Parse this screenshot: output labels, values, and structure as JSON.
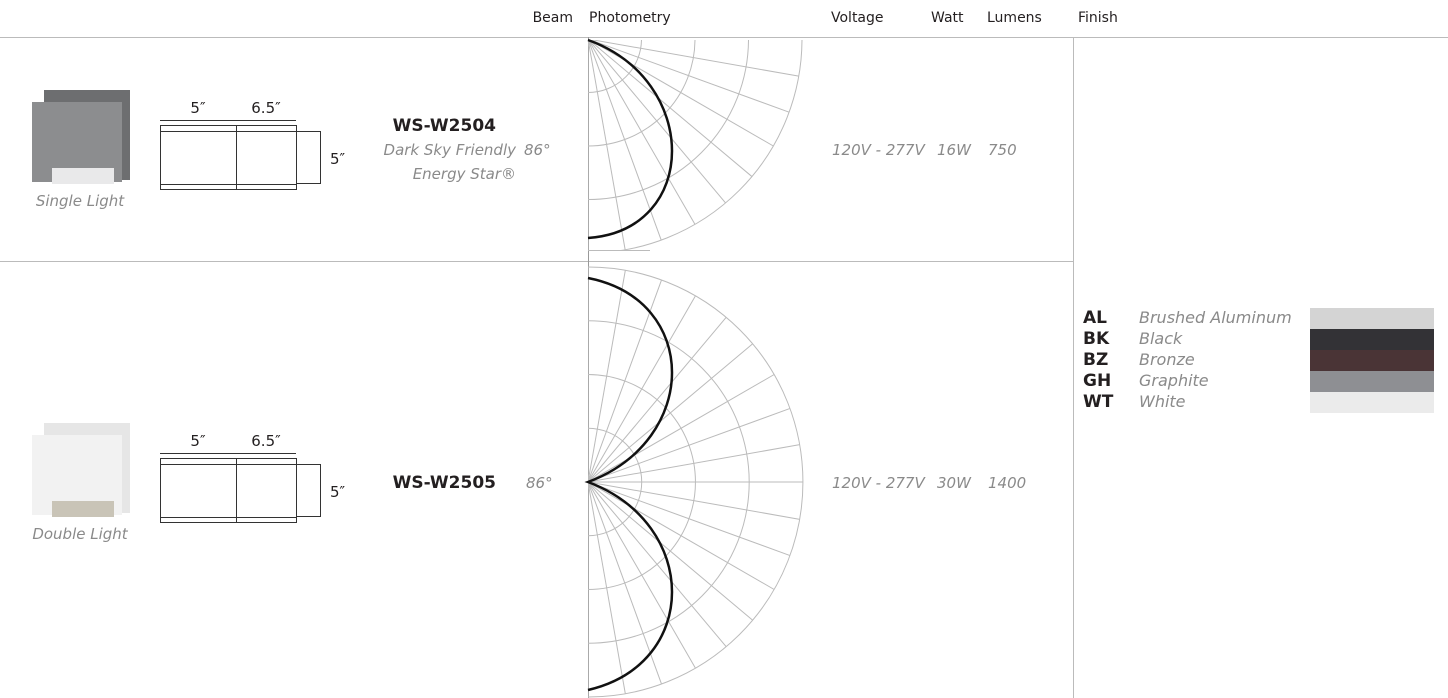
{
  "header": {
    "columns": [
      "Beam",
      "Photometry",
      "Voltage",
      "Watt",
      "Lumens",
      "Finish"
    ]
  },
  "products": [
    {
      "image_label": "Single Light",
      "dimensions": {
        "width": "5″",
        "depth": "6.5″",
        "height": "5″"
      },
      "model": "WS-W2504",
      "notes": [
        "Dark Sky Friendly",
        "Energy Star®"
      ],
      "beam": "86°",
      "voltage": "120V - 277V",
      "watt": "16W",
      "lumens": 750
    },
    {
      "image_label": "Double Light",
      "dimensions": {
        "width": "5″",
        "depth": "6.5″",
        "height": "5″"
      },
      "model": "WS-W2505",
      "notes": [],
      "beam": "86°",
      "voltage": "120V - 277V",
      "watt": "30W",
      "lumens": 1400
    }
  ],
  "finishes": [
    {
      "code": "AL",
      "name": "Brushed Aluminum",
      "color": "#d4d4d4"
    },
    {
      "code": "BK",
      "name": "Black",
      "color": "#333236"
    },
    {
      "code": "BZ",
      "name": "Bronze",
      "color": "#4a3436"
    },
    {
      "code": "GH",
      "name": "Graphite",
      "color": "#8e8f93"
    },
    {
      "code": "WT",
      "name": "White",
      "color": "#ebebeb"
    }
  ]
}
